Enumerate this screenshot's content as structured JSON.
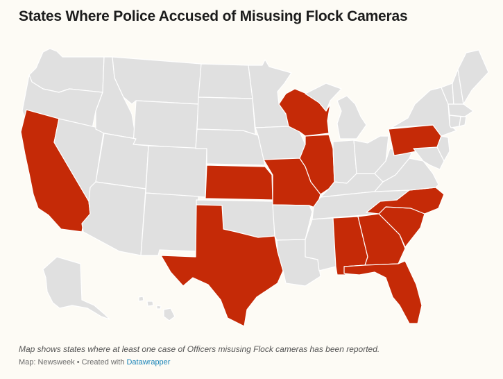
{
  "title": "States Where Police Accused of Misusing Flock Cameras",
  "note": "Map shows states where at least one case of Officers misusing Flock cameras has been reported.",
  "credit": {
    "source": "Map: Newsweek",
    "separator": " • ",
    "created_with": "Created with ",
    "tool": "Datawrapper"
  },
  "colors": {
    "reported": "#c52a07",
    "not_reported": "#e0e0e0",
    "border": "#ffffff",
    "background": "#fdfbf5",
    "link": "#1a84b8"
  },
  "highlighted_states": [
    "California",
    "Texas",
    "Kansas",
    "Missouri",
    "Illinois",
    "Wisconsin",
    "Pennsylvania",
    "Alabama",
    "Georgia",
    "Florida",
    "South Carolina",
    "North Carolina"
  ]
}
